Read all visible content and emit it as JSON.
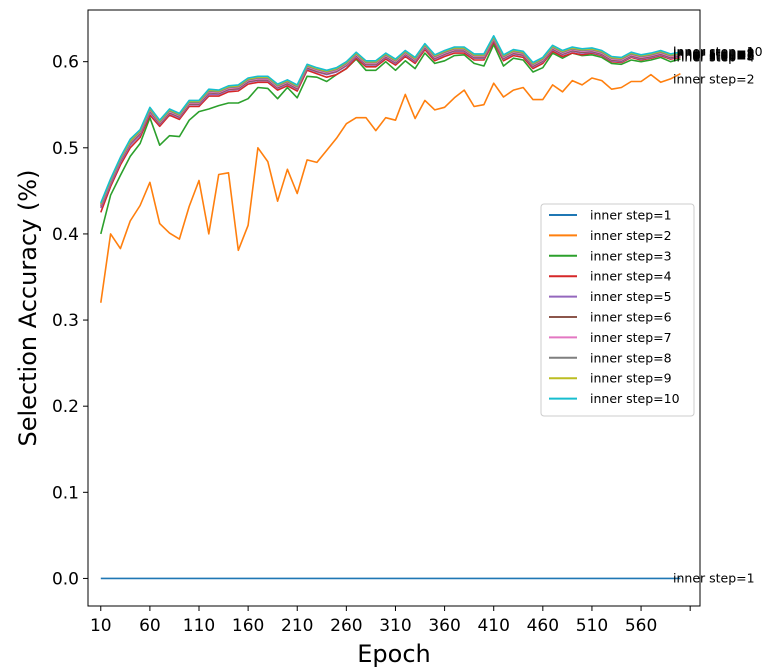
{
  "chart_data": {
    "type": "line",
    "title": "",
    "xlabel": "Epoch",
    "ylabel": "Selection Accuracy (%)",
    "xlim": [
      -3,
      620
    ],
    "ylim": [
      -0.032,
      0.66
    ],
    "xticks": [
      10,
      60,
      110,
      160,
      210,
      260,
      310,
      360,
      410,
      460,
      510,
      560
    ],
    "extra_xtick_marks": [
      610
    ],
    "xtick_labels": [
      "10",
      "60",
      "110",
      "160",
      "210",
      "260",
      "310",
      "360",
      "410",
      "460",
      "510",
      "560"
    ],
    "yticks": [
      0.0,
      0.1,
      0.2,
      0.3,
      0.4,
      0.5,
      0.6
    ],
    "ytick_labels": [
      "0.0",
      "0.1",
      "0.2",
      "0.3",
      "0.4",
      "0.5",
      "0.6"
    ],
    "grid": false,
    "legend_position": "center-right",
    "x": [
      10,
      20,
      30,
      40,
      50,
      60,
      70,
      80,
      90,
      100,
      110,
      120,
      130,
      140,
      150,
      160,
      170,
      180,
      190,
      200,
      210,
      220,
      230,
      240,
      250,
      260,
      270,
      280,
      290,
      300,
      310,
      320,
      330,
      340,
      350,
      360,
      370,
      380,
      390,
      400,
      410,
      420,
      430,
      440,
      450,
      460,
      470,
      480,
      490,
      500,
      510,
      520,
      530,
      540,
      550,
      560,
      570,
      580,
      590,
      600
    ],
    "series": [
      {
        "name": "inner step=1",
        "color": "#1f77b4",
        "end_label": "inner step=1",
        "values": [
          0,
          0,
          0,
          0,
          0,
          0,
          0,
          0,
          0,
          0,
          0,
          0,
          0,
          0,
          0,
          0,
          0,
          0,
          0,
          0,
          0,
          0,
          0,
          0,
          0,
          0,
          0,
          0,
          0,
          0,
          0,
          0,
          0,
          0,
          0,
          0,
          0,
          0,
          0,
          0,
          0,
          0,
          0,
          0,
          0,
          0,
          0,
          0,
          0,
          0,
          0,
          0,
          0,
          0,
          0,
          0,
          0,
          0,
          0,
          0
        ]
      },
      {
        "name": "inner step=2",
        "color": "#ff7f0e",
        "end_label": "inner step=2",
        "values": [
          0.32,
          0.4,
          0.383,
          0.415,
          0.433,
          0.46,
          0.412,
          0.401,
          0.394,
          0.432,
          0.462,
          0.4,
          0.469,
          0.471,
          0.381,
          0.41,
          0.5,
          0.484,
          0.438,
          0.475,
          0.447,
          0.486,
          0.483,
          0.497,
          0.511,
          0.528,
          0.535,
          0.535,
          0.52,
          0.535,
          0.532,
          0.562,
          0.534,
          0.555,
          0.544,
          0.547,
          0.558,
          0.567,
          0.548,
          0.55,
          0.575,
          0.559,
          0.567,
          0.57,
          0.556,
          0.556,
          0.573,
          0.565,
          0.578,
          0.573,
          0.581,
          0.578,
          0.568,
          0.57,
          0.577,
          0.577,
          0.585,
          0.576,
          0.58,
          0.586
        ]
      },
      {
        "name": "inner step=3",
        "color": "#2ca02c",
        "end_label": "",
        "values": [
          0.4,
          0.445,
          0.468,
          0.49,
          0.505,
          0.535,
          0.503,
          0.514,
          0.513,
          0.532,
          0.542,
          0.545,
          0.549,
          0.552,
          0.552,
          0.557,
          0.57,
          0.569,
          0.557,
          0.57,
          0.558,
          0.583,
          0.582,
          0.577,
          0.585,
          0.592,
          0.603,
          0.59,
          0.59,
          0.6,
          0.59,
          0.601,
          0.592,
          0.61,
          0.598,
          0.601,
          0.607,
          0.608,
          0.598,
          0.595,
          0.62,
          0.595,
          0.604,
          0.602,
          0.588,
          0.593,
          0.61,
          0.604,
          0.61,
          0.607,
          0.608,
          0.605,
          0.598,
          0.597,
          0.602,
          0.6,
          0.602,
          0.605,
          0.6,
          0.603
        ]
      },
      {
        "name": "inner step=4",
        "color": "#d62728",
        "end_label": "inner step=4",
        "values": [
          0.425,
          0.455,
          0.48,
          0.5,
          0.512,
          0.538,
          0.525,
          0.538,
          0.533,
          0.548,
          0.548,
          0.56,
          0.56,
          0.565,
          0.566,
          0.574,
          0.576,
          0.576,
          0.567,
          0.572,
          0.566,
          0.59,
          0.586,
          0.582,
          0.585,
          0.592,
          0.604,
          0.594,
          0.594,
          0.603,
          0.596,
          0.606,
          0.598,
          0.614,
          0.601,
          0.606,
          0.61,
          0.61,
          0.602,
          0.602,
          0.623,
          0.601,
          0.607,
          0.605,
          0.592,
          0.598,
          0.612,
          0.606,
          0.61,
          0.608,
          0.61,
          0.607,
          0.6,
          0.599,
          0.605,
          0.602,
          0.604,
          0.607,
          0.603,
          0.605
        ]
      },
      {
        "name": "inner step=5",
        "color": "#9467bd",
        "end_label": "inner step=5",
        "values": [
          0.43,
          0.458,
          0.483,
          0.503,
          0.515,
          0.541,
          0.527,
          0.54,
          0.535,
          0.55,
          0.55,
          0.562,
          0.562,
          0.567,
          0.568,
          0.576,
          0.578,
          0.578,
          0.569,
          0.574,
          0.568,
          0.592,
          0.588,
          0.585,
          0.588,
          0.595,
          0.606,
          0.596,
          0.596,
          0.605,
          0.598,
          0.608,
          0.6,
          0.616,
          0.603,
          0.608,
          0.612,
          0.612,
          0.604,
          0.604,
          0.625,
          0.603,
          0.609,
          0.607,
          0.594,
          0.6,
          0.614,
          0.608,
          0.612,
          0.61,
          0.611,
          0.608,
          0.601,
          0.6,
          0.606,
          0.603,
          0.605,
          0.608,
          0.604,
          0.606
        ]
      },
      {
        "name": "inner step=6",
        "color": "#8c564b",
        "end_label": "inner step=6",
        "values": [
          0.432,
          0.46,
          0.485,
          0.505,
          0.517,
          0.543,
          0.528,
          0.541,
          0.536,
          0.551,
          0.551,
          0.564,
          0.563,
          0.568,
          0.569,
          0.577,
          0.579,
          0.579,
          0.57,
          0.575,
          0.569,
          0.593,
          0.589,
          0.586,
          0.589,
          0.596,
          0.607,
          0.597,
          0.597,
          0.606,
          0.599,
          0.609,
          0.601,
          0.617,
          0.604,
          0.609,
          0.613,
          0.613,
          0.605,
          0.605,
          0.626,
          0.604,
          0.61,
          0.608,
          0.595,
          0.601,
          0.615,
          0.609,
          0.613,
          0.611,
          0.612,
          0.609,
          0.602,
          0.601,
          0.607,
          0.604,
          0.606,
          0.609,
          0.605,
          0.607
        ]
      },
      {
        "name": "inner step=7",
        "color": "#e377c2",
        "end_label": "inner step=7",
        "values": [
          0.433,
          0.461,
          0.486,
          0.506,
          0.518,
          0.544,
          0.529,
          0.542,
          0.537,
          0.552,
          0.552,
          0.565,
          0.564,
          0.569,
          0.57,
          0.578,
          0.58,
          0.58,
          0.571,
          0.576,
          0.57,
          0.594,
          0.59,
          0.587,
          0.59,
          0.597,
          0.608,
          0.598,
          0.598,
          0.607,
          0.6,
          0.61,
          0.602,
          0.618,
          0.605,
          0.61,
          0.614,
          0.614,
          0.606,
          0.606,
          0.627,
          0.605,
          0.611,
          0.609,
          0.596,
          0.602,
          0.616,
          0.61,
          0.614,
          0.612,
          0.613,
          0.61,
          0.603,
          0.602,
          0.608,
          0.605,
          0.607,
          0.61,
          0.606,
          0.608
        ]
      },
      {
        "name": "inner step=8",
        "color": "#7f7f7f",
        "end_label": "inner step=8",
        "values": [
          0.434,
          0.462,
          0.487,
          0.507,
          0.519,
          0.545,
          0.53,
          0.543,
          0.538,
          0.553,
          0.553,
          0.566,
          0.565,
          0.57,
          0.571,
          0.579,
          0.581,
          0.581,
          0.572,
          0.577,
          0.571,
          0.595,
          0.591,
          0.588,
          0.591,
          0.598,
          0.609,
          0.599,
          0.599,
          0.608,
          0.601,
          0.611,
          0.603,
          0.619,
          0.606,
          0.611,
          0.615,
          0.615,
          0.607,
          0.607,
          0.628,
          0.606,
          0.612,
          0.61,
          0.597,
          0.603,
          0.617,
          0.611,
          0.615,
          0.613,
          0.614,
          0.611,
          0.604,
          0.603,
          0.609,
          0.606,
          0.608,
          0.611,
          0.607,
          0.609
        ]
      },
      {
        "name": "inner step=9",
        "color": "#bcbd22",
        "end_label": "inner step=9",
        "values": [
          0.435,
          0.463,
          0.488,
          0.508,
          0.52,
          0.546,
          0.531,
          0.544,
          0.539,
          0.554,
          0.554,
          0.567,
          0.566,
          0.571,
          0.572,
          0.58,
          0.582,
          0.582,
          0.573,
          0.578,
          0.572,
          0.596,
          0.592,
          0.589,
          0.592,
          0.599,
          0.61,
          0.6,
          0.6,
          0.609,
          0.602,
          0.612,
          0.604,
          0.62,
          0.607,
          0.612,
          0.616,
          0.616,
          0.608,
          0.608,
          0.629,
          0.607,
          0.613,
          0.611,
          0.598,
          0.604,
          0.618,
          0.612,
          0.616,
          0.614,
          0.615,
          0.612,
          0.605,
          0.604,
          0.61,
          0.607,
          0.609,
          0.612,
          0.608,
          0.61
        ]
      },
      {
        "name": "inner step=10",
        "color": "#17becf",
        "end_label": "inner step=10",
        "values": [
          0.436,
          0.464,
          0.489,
          0.51,
          0.521,
          0.547,
          0.532,
          0.545,
          0.54,
          0.555,
          0.555,
          0.568,
          0.567,
          0.572,
          0.573,
          0.581,
          0.583,
          0.583,
          0.574,
          0.579,
          0.573,
          0.597,
          0.593,
          0.59,
          0.593,
          0.6,
          0.611,
          0.601,
          0.601,
          0.61,
          0.603,
          0.613,
          0.605,
          0.621,
          0.608,
          0.613,
          0.617,
          0.617,
          0.609,
          0.609,
          0.63,
          0.608,
          0.614,
          0.612,
          0.599,
          0.605,
          0.619,
          0.613,
          0.617,
          0.615,
          0.616,
          0.613,
          0.606,
          0.605,
          0.611,
          0.608,
          0.61,
          0.613,
          0.609,
          0.611
        ]
      }
    ]
  }
}
